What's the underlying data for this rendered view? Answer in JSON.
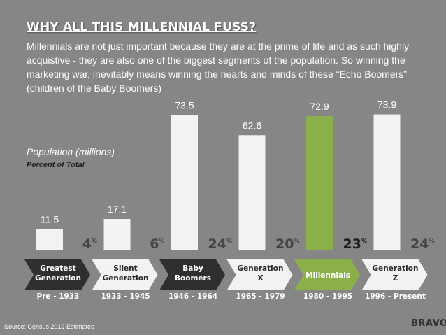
{
  "title": "WHY ALL THIS MILLENNIAL FUSS?",
  "intro": "Millennials are not just important because they are at the prime of life and as such highly acquistive - they are also one of the biggest segments of the population. So winning the marketing war, inevitably means winning the hearts and minds of these “Echo Boomers” (children of the Baby Boomers)",
  "ylabel": "Population (millions)",
  "subnote": "Percent of Total",
  "source": "Source: Census 2012 Estimates",
  "logo": "BRAVO",
  "colors": {
    "background": "#868686",
    "bar": "#f2f2f2",
    "highlight_bar": "#8bb04a",
    "arrow_dark": "#2f2f2f",
    "arrow_light": "#f2f2f2",
    "arrow_highlight": "#8bb04a"
  },
  "chart_data": {
    "type": "bar",
    "categories": [
      "Greatest Generation",
      "Silent Generation",
      "Baby Boomers",
      "Generation X",
      "Millennials",
      "Generation Z"
    ],
    "label_lines": [
      [
        "Greatest",
        "Generation"
      ],
      [
        "Silent",
        "Generation"
      ],
      [
        "Baby",
        "Boomers"
      ],
      [
        "Generation",
        "X"
      ],
      [
        "Millennials"
      ],
      [
        "Generation",
        "Z"
      ]
    ],
    "years": [
      "Pre - 1933",
      "1933 - 1945",
      "1946 - 1964",
      "1965 - 1979",
      "1980 - 1995",
      "1996 - Present"
    ],
    "values": [
      11.5,
      17.1,
      73.5,
      62.6,
      72.9,
      73.9
    ],
    "value_labels": [
      "11.5",
      "17.1",
      "73.5",
      "62.6",
      "72.9",
      "73.9"
    ],
    "percents": [
      "4",
      "6",
      "24",
      "20",
      "23",
      "24"
    ],
    "percent_symbol": "%",
    "highlight_index": 4,
    "ylim": [
      0,
      76
    ]
  }
}
